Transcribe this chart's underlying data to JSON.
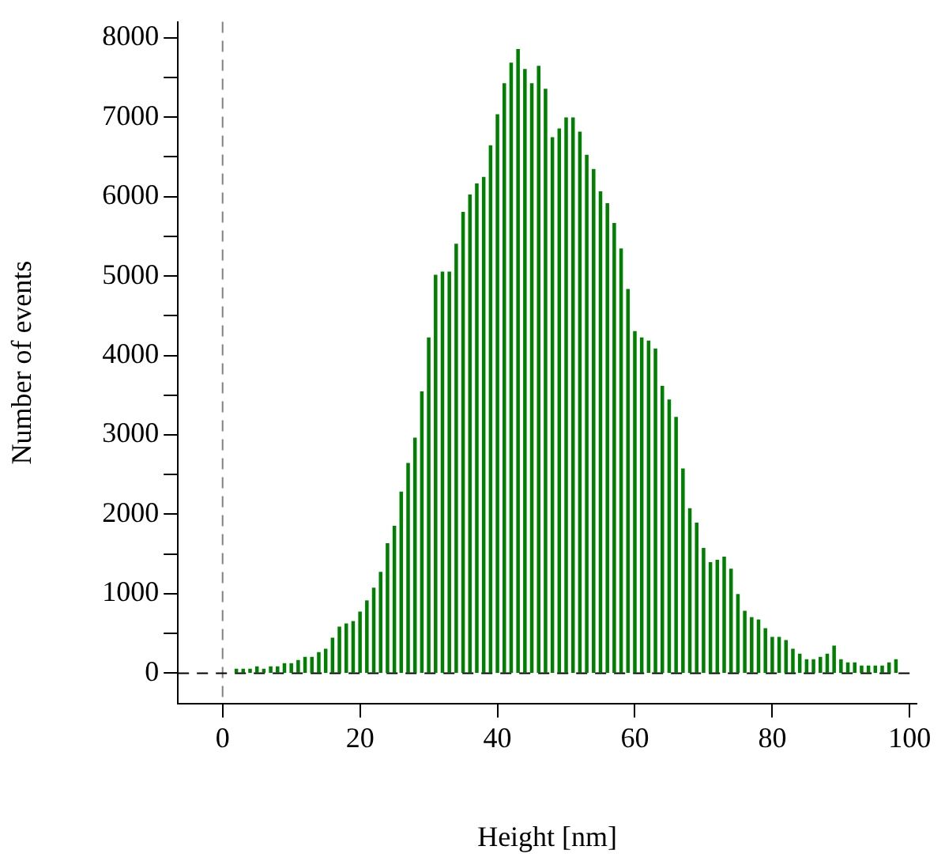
{
  "chart_data": {
    "type": "histogram",
    "xlabel": "Height [nm]",
    "ylabel": "Number of events",
    "bins": [
      1.5,
      2.5,
      3.5,
      4.5,
      5.5,
      6.5,
      7.5,
      8.5,
      9.5,
      10.5,
      11.5,
      12.5,
      13.5,
      14.5,
      15.5,
      16.5,
      17.5,
      18.5,
      19.5,
      20.5,
      21.5,
      22.5,
      23.5,
      24.5,
      25.5,
      26.5,
      27.5,
      28.5,
      29.5,
      30.5,
      31.5,
      32.5,
      33.5,
      34.5,
      35.5,
      36.5,
      37.5,
      38.5,
      39.5,
      40.5,
      41.5,
      42.5,
      43.5,
      44.5,
      45.5,
      46.5,
      47.5,
      48.5,
      49.5,
      50.5,
      51.5,
      52.5,
      53.5,
      54.5,
      55.5,
      56.5,
      57.5,
      58.5,
      59.5,
      60.5,
      61.5,
      62.5,
      63.5,
      64.5,
      65.5,
      66.5,
      67.5,
      68.5,
      69.5,
      70.5,
      71.5,
      72.5,
      73.5,
      74.5,
      75.5,
      76.5,
      77.5,
      78.5,
      79.5,
      80.5,
      81.5,
      82.5,
      83.5,
      84.5,
      85.5,
      86.5,
      87.5,
      88.5,
      89.5,
      90.5,
      91.5,
      92.5,
      93.5,
      94.5,
      95.5,
      96.5,
      97.5,
      98.5
    ],
    "values": [
      50,
      50,
      50,
      80,
      50,
      80,
      80,
      120,
      120,
      160,
      200,
      200,
      260,
      300,
      440,
      580,
      620,
      650,
      770,
      910,
      1070,
      1270,
      1630,
      1850,
      2280,
      2640,
      2960,
      3540,
      4220,
      5010,
      5050,
      5050,
      5400,
      5800,
      6020,
      6160,
      6240,
      6640,
      7030,
      7420,
      7680,
      7850,
      7600,
      7420,
      7640,
      7350,
      6740,
      6850,
      6990,
      6990,
      6810,
      6520,
      6340,
      6060,
      5910,
      5660,
      5340,
      4830,
      4300,
      4220,
      4180,
      4080,
      3610,
      3440,
      3220,
      2570,
      2070,
      1890,
      1570,
      1390,
      1420,
      1460,
      1310,
      990,
      780,
      700,
      670,
      560,
      450,
      450,
      410,
      300,
      240,
      170,
      170,
      200,
      240,
      340,
      170,
      130,
      130,
      90,
      90,
      90,
      90,
      130,
      170
    ],
    "color": "#008000",
    "xlim": [
      -6.5,
      101
    ],
    "xticks": [
      0,
      20,
      40,
      60,
      80,
      100
    ],
    "ylim": [
      -380,
      8200
    ],
    "yticks": [
      0,
      {
        "value": 500,
        "label": null
      },
      1000,
      {
        "value": 1500,
        "label": null
      },
      2000,
      {
        "value": 2500,
        "label": null
      },
      3000,
      {
        "value": 3500,
        "label": null
      },
      4000,
      {
        "value": 4500,
        "label": null
      },
      5000,
      {
        "value": 5500,
        "label": null
      },
      6000,
      {
        "value": 6500,
        "label": null
      },
      7000,
      {
        "value": 7500,
        "label": null
      },
      8000
    ],
    "ref_lines": [
      {
        "axis": "x",
        "value": 0,
        "color": "#808080",
        "line_style": "dashed"
      },
      {
        "axis": "y",
        "value": 0,
        "color": "#000000",
        "line_style": "dashed"
      }
    ]
  }
}
